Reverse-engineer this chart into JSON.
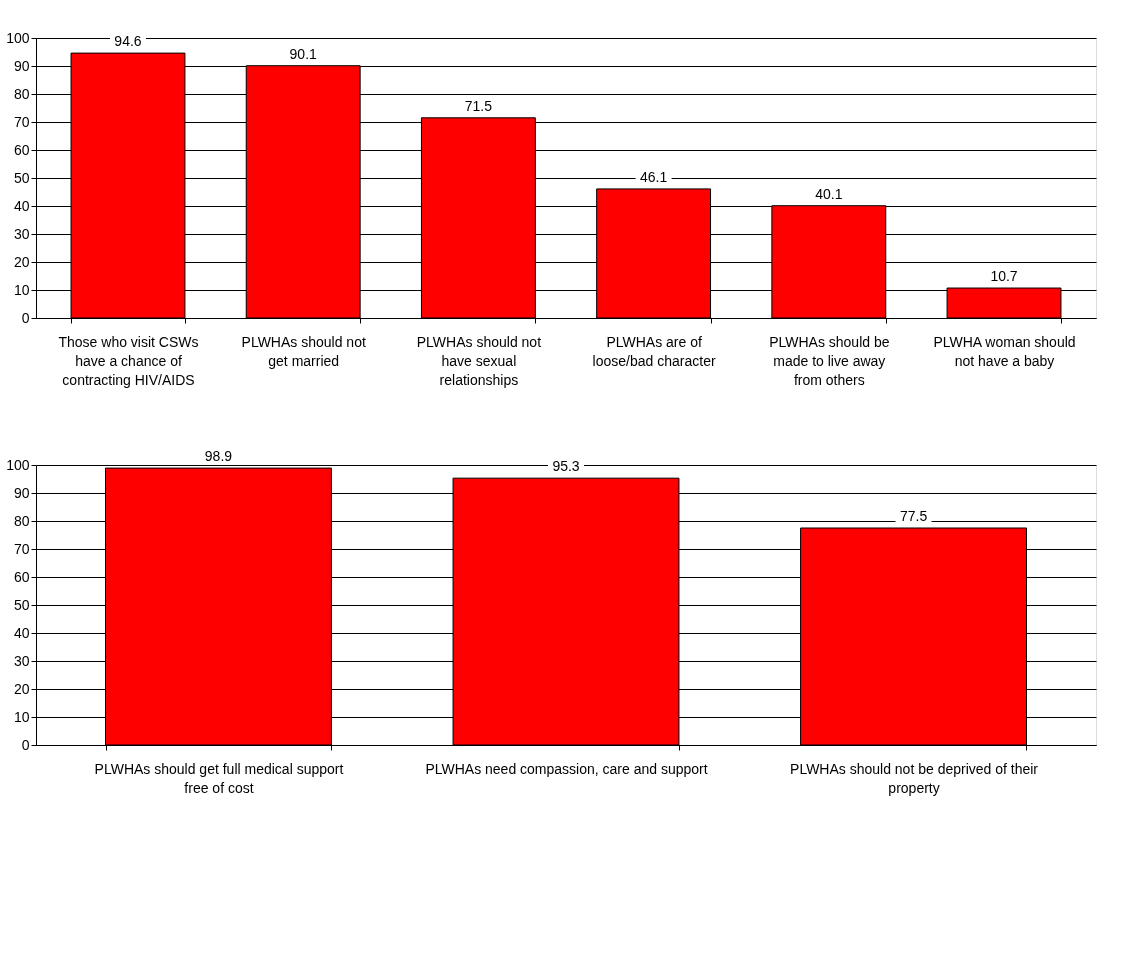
{
  "chart_data": [
    {
      "type": "bar",
      "categories": [
        "Those who visit CSWs have a chance of contracting HIV/AIDS",
        "PLWHAs should not get married",
        "PLWHAs should not have sexual relationships",
        "PLWHAs are of loose/bad character",
        "PLWHAs should be made to live away from others",
        "PLWHA woman should not have a baby"
      ],
      "values": [
        94.6,
        90.1,
        71.5,
        46.1,
        40.1,
        10.7
      ],
      "color": "#ff0000",
      "ylim": [
        0,
        100
      ],
      "yticks": [
        0,
        10,
        20,
        30,
        40,
        50,
        60,
        70,
        80,
        90,
        100
      ],
      "grid": "y",
      "data_labels": true
    },
    {
      "type": "bar",
      "categories": [
        "PLWHAs should get full medical support free of cost",
        "PLWHAs need compassion, care and support",
        "PLWHAs should not be deprived of their property"
      ],
      "values": [
        98.9,
        95.3,
        77.5
      ],
      "color": "#ff0000",
      "ylim": [
        0,
        100
      ],
      "yticks": [
        0,
        10,
        20,
        30,
        40,
        50,
        60,
        70,
        80,
        90,
        100
      ],
      "grid": "y",
      "data_labels": true
    }
  ]
}
